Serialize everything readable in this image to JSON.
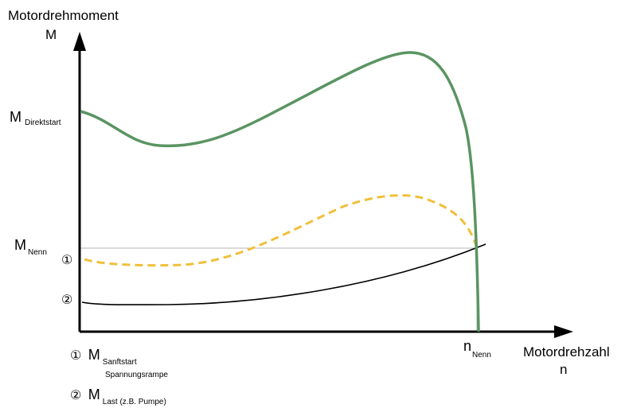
{
  "axes": {
    "y_title": "Motordrehmoment",
    "y_symbol": "M",
    "x_title": "Motordrehzahl",
    "x_symbol": "n"
  },
  "labels": {
    "m_direktstart": {
      "main": "M",
      "sub": "Direktstart"
    },
    "m_nenn": {
      "main": "M",
      "sub": "Nenn"
    },
    "n_nenn": {
      "main": "n",
      "sub": "Nenn"
    },
    "marker_1": "①",
    "marker_2": "②"
  },
  "legend": [
    {
      "marker": "①",
      "main": "M",
      "sub": "Sanftstart",
      "sub2": "Spannungsrampe"
    },
    {
      "marker": "②",
      "main": "M",
      "sub": "Last (z.B. Pumpe)"
    }
  ],
  "curves": {
    "direktstart": {
      "color": "#5a9462",
      "style": "solid"
    },
    "sanftstart": {
      "color": "#f0bf3a",
      "style": "dashed"
    },
    "last": {
      "color": "#000000",
      "style": "solid"
    },
    "reference_lines": {
      "color": "#b5b5b5"
    }
  }
}
